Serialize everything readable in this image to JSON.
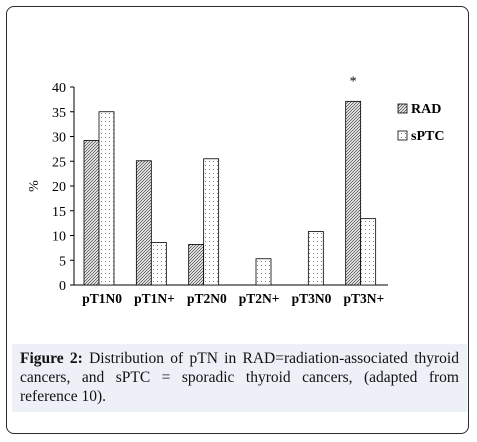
{
  "chart_data": {
    "type": "bar",
    "categories": [
      "pT1N0",
      "pT1N+",
      "pT2N0",
      "pT2N+",
      "pT3N0",
      "pT3N+"
    ],
    "series": [
      {
        "name": "RAD",
        "values": [
          29.2,
          25.1,
          8.2,
          0,
          0,
          37.1
        ],
        "fill": "diagonal-hatch"
      },
      {
        "name": "sPTC",
        "values": [
          35.0,
          8.6,
          25.5,
          5.3,
          10.8,
          13.4
        ],
        "fill": "dotted"
      }
    ],
    "ylabel": "%",
    "ylim": [
      0,
      40
    ],
    "yticks": [
      "0",
      "5",
      "10",
      "15",
      "20",
      "25",
      "30",
      "35",
      "40"
    ],
    "legend_position": "right",
    "annotation": "*"
  },
  "caption": {
    "label": "Figure 2:",
    "text": " Distribution of pTN in RAD=radiation-associated thyroid cancers, and sPTC = sporadic thyroid cancers, (adapted from reference 10)."
  },
  "colors": {
    "hatch": "#555555",
    "dots": "#666666",
    "caption_background": "#eef0f8",
    "frame": "#2b2b2b"
  }
}
